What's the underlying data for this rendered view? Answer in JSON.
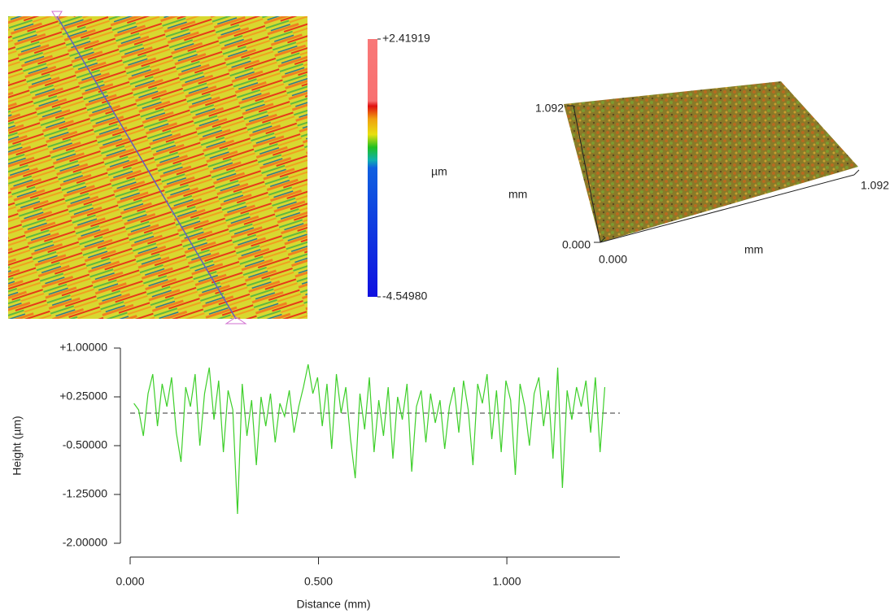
{
  "chart_data": [
    {
      "type": "heatmap",
      "clim": [
        -4.5498,
        2.41919
      ],
      "colorbar_ticks": [
        {
          "value": 2.41919,
          "label": "+2.41919"
        },
        {
          "value": -4.5498,
          "label": "-4.54980"
        }
      ],
      "colorbar_label": "µm"
    },
    {
      "type": "surface",
      "xlabel": "mm",
      "ylabel": "mm",
      "xlim": [
        0,
        1.092
      ],
      "ylim": [
        0,
        1.092
      ],
      "xticks": [
        {
          "value": 0,
          "label": "0.000"
        },
        {
          "value": 1.092,
          "label": "1.092"
        }
      ],
      "yticks": [
        {
          "value": 0,
          "label": "0.000"
        },
        {
          "value": 1.092,
          "label": "1.092"
        }
      ]
    },
    {
      "type": "line",
      "xlabel": "Distance (mm)",
      "ylabel": "Height (µm)",
      "xlim": [
        0,
        1.3
      ],
      "ylim": [
        -2,
        1
      ],
      "xticks": [
        {
          "value": 0,
          "label": "0.000"
        },
        {
          "value": 0.5,
          "label": "0.500"
        },
        {
          "value": 1,
          "label": "1.000"
        }
      ],
      "yticks": [
        {
          "value": -2,
          "label": "-2.00000"
        },
        {
          "value": -1.25,
          "label": "-1.25000"
        },
        {
          "value": -0.5,
          "label": "-0.50000"
        },
        {
          "value": 0.25,
          "label": "+0.25000"
        },
        {
          "value": 1,
          "label": "+1.00000"
        }
      ],
      "mean_line": 0,
      "color": "#3ecf2a",
      "x": [
        0.01,
        0.0225,
        0.035,
        0.0475,
        0.06,
        0.0725,
        0.085,
        0.0975,
        0.11,
        0.1225,
        0.135,
        0.1475,
        0.16,
        0.1725,
        0.185,
        0.1975,
        0.21,
        0.2225,
        0.235,
        0.2475,
        0.26,
        0.2725,
        0.285,
        0.2975,
        0.31,
        0.3225,
        0.335,
        0.3475,
        0.36,
        0.3725,
        0.385,
        0.3975,
        0.41,
        0.4225,
        0.435,
        0.4475,
        0.46,
        0.4725,
        0.485,
        0.4975,
        0.51,
        0.5225,
        0.535,
        0.5475,
        0.56,
        0.5725,
        0.585,
        0.5975,
        0.61,
        0.6225,
        0.635,
        0.6475,
        0.66,
        0.6725,
        0.685,
        0.6975,
        0.71,
        0.7225,
        0.735,
        0.7475,
        0.76,
        0.7725,
        0.785,
        0.7975,
        0.81,
        0.8225,
        0.835,
        0.8475,
        0.86,
        0.8725,
        0.885,
        0.8975,
        0.91,
        0.9225,
        0.935,
        0.9475,
        0.96,
        0.9725,
        0.985,
        0.9975,
        1.01,
        1.0225,
        1.035,
        1.0475,
        1.06,
        1.0725,
        1.085,
        1.0975,
        1.11,
        1.1225,
        1.135,
        1.1475,
        1.16,
        1.1725,
        1.185,
        1.1975,
        1.21,
        1.2225,
        1.235,
        1.2475,
        1.26
      ],
      "values": [
        0.15,
        0.05,
        -0.35,
        0.3,
        0.6,
        -0.2,
        0.45,
        0.1,
        0.55,
        -0.3,
        -0.75,
        0.4,
        0.1,
        0.6,
        -0.5,
        0.3,
        0.7,
        -0.1,
        0.5,
        -0.6,
        0.35,
        0.05,
        -1.55,
        0.45,
        -0.35,
        0.2,
        -0.8,
        0.25,
        -0.2,
        0.3,
        -0.45,
        0.15,
        -0.05,
        0.35,
        -0.3,
        0.1,
        0.4,
        0.75,
        0.3,
        0.55,
        -0.2,
        0.45,
        -0.55,
        0.6,
        0.0,
        0.4,
        -0.4,
        -1.0,
        0.3,
        -0.25,
        0.55,
        -0.6,
        0.2,
        -0.35,
        0.4,
        -0.7,
        0.25,
        -0.1,
        0.45,
        -0.9,
        0.1,
        0.35,
        -0.45,
        0.3,
        -0.15,
        0.2,
        -0.55,
        0.1,
        0.4,
        -0.3,
        0.5,
        0.05,
        -0.8,
        0.45,
        0.15,
        0.6,
        -0.4,
        0.35,
        -0.6,
        0.5,
        0.2,
        -0.95,
        0.45,
        0.1,
        -0.5,
        0.3,
        0.55,
        -0.2,
        0.35,
        -0.7,
        0.7,
        -1.15,
        0.35,
        -0.1,
        0.4,
        0.1,
        0.5,
        -0.3,
        0.55,
        -0.6,
        0.4
      ]
    }
  ]
}
